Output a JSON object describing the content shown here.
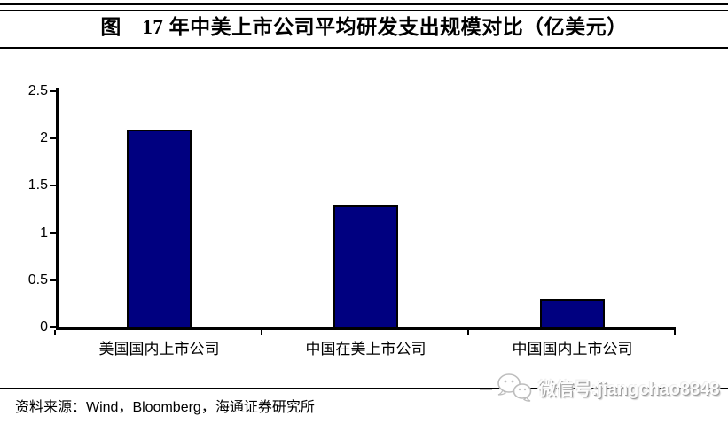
{
  "page": {
    "title": "图　17 年中美上市公司平均研发支出规模对比（亿美元）",
    "source": "资料来源：Wind，Bloomberg，海通证券研究所",
    "watermark": {
      "icon": "wechat-icon",
      "text": "微信号:jiangchao8848"
    },
    "colors": {
      "bar_fill": "#000080",
      "bar_border": "#000000",
      "axis": "#000000",
      "rule": "#000000"
    }
  },
  "chart_data": {
    "type": "bar",
    "title": "图　17 年中美上市公司平均研发支出规模对比（亿美元）",
    "categories": [
      "美国国内上市公司",
      "中国在美上市公司",
      "中国国内上市公司"
    ],
    "values": [
      2.1,
      1.3,
      0.3
    ],
    "xlabel": "",
    "ylabel": "",
    "ylim": [
      0,
      2.5
    ],
    "yticks": [
      0,
      0.5,
      1,
      1.5,
      2,
      2.5
    ],
    "grid": false,
    "legend": null,
    "bar_color": "#000080"
  }
}
